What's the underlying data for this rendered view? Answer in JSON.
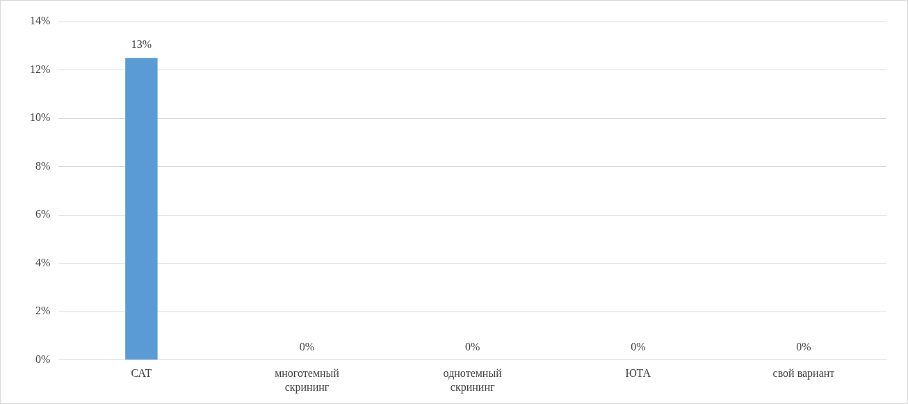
{
  "chart_data": {
    "type": "bar",
    "categories": [
      "САТ",
      "многотемный скрининг",
      "однотемный скрининг",
      "ЮТА",
      "свой вариант"
    ],
    "values": [
      12.5,
      0,
      0,
      0,
      0
    ],
    "value_labels": [
      "13%",
      "0%",
      "0%",
      "0%",
      "0%"
    ],
    "color": "#5b9bd5",
    "ylim": [
      0,
      14
    ],
    "yticks": [
      {
        "value": 0,
        "label": "0%"
      },
      {
        "value": 2,
        "label": "2%"
      },
      {
        "value": 4,
        "label": "4%"
      },
      {
        "value": 6,
        "label": "6%"
      },
      {
        "value": 8,
        "label": "8%"
      },
      {
        "value": 10,
        "label": "10%"
      },
      {
        "value": 12,
        "label": "12%"
      },
      {
        "value": 14,
        "label": "14%"
      }
    ],
    "grid": "y"
  }
}
